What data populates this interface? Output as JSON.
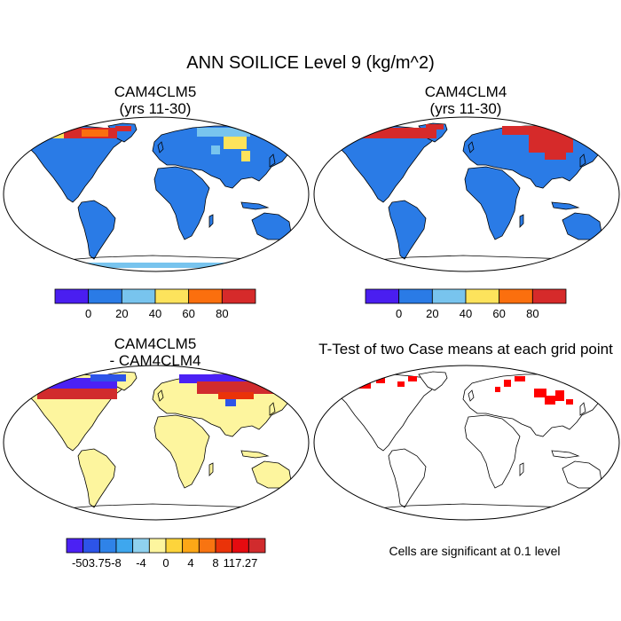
{
  "title": "ANN SOILICE Level 9 (kg/m^2)",
  "panels": [
    {
      "title_line1": "CAM4CLM5",
      "title_line2": "(yrs 11-30)",
      "kind": "field_clm5"
    },
    {
      "title_line1": "CAM4CLM4",
      "title_line2": "(yrs 11-30)",
      "kind": "field_clm4"
    },
    {
      "title_line1": "CAM4CLM5",
      "title_line2": "- CAM4CLM4",
      "kind": "difference"
    },
    {
      "title_line1": "T-Test of two Case means at each grid point",
      "title_line2": "",
      "kind": "ttest"
    }
  ],
  "colorbar_fields": {
    "colors": [
      "#4a1ef0",
      "#2a7be6",
      "#78c4ee",
      "#fde35c",
      "#fb6f0e",
      "#d62a2a"
    ],
    "labels": [
      "0",
      "20",
      "40",
      "60",
      "80"
    ]
  },
  "colorbar_diff": {
    "colors": [
      "#4b21f4",
      "#2d54e8",
      "#2f83e8",
      "#3ea7ee",
      "#8fd1ef",
      "#fdf59e",
      "#fdd43b",
      "#fca717",
      "#f87411",
      "#ea3309",
      "#e60b10",
      "#d12b2d"
    ],
    "labels": [
      "-503.75",
      "-8",
      "-4",
      "0",
      "4",
      "8",
      "117.27"
    ]
  },
  "significance_note": "Cells are significant at 0.1 level",
  "significance_color": "#ff0000",
  "ocean_color": "#ffffff",
  "land_field_color": "#2a7be6",
  "land_diff_color": "#fdf59e"
}
